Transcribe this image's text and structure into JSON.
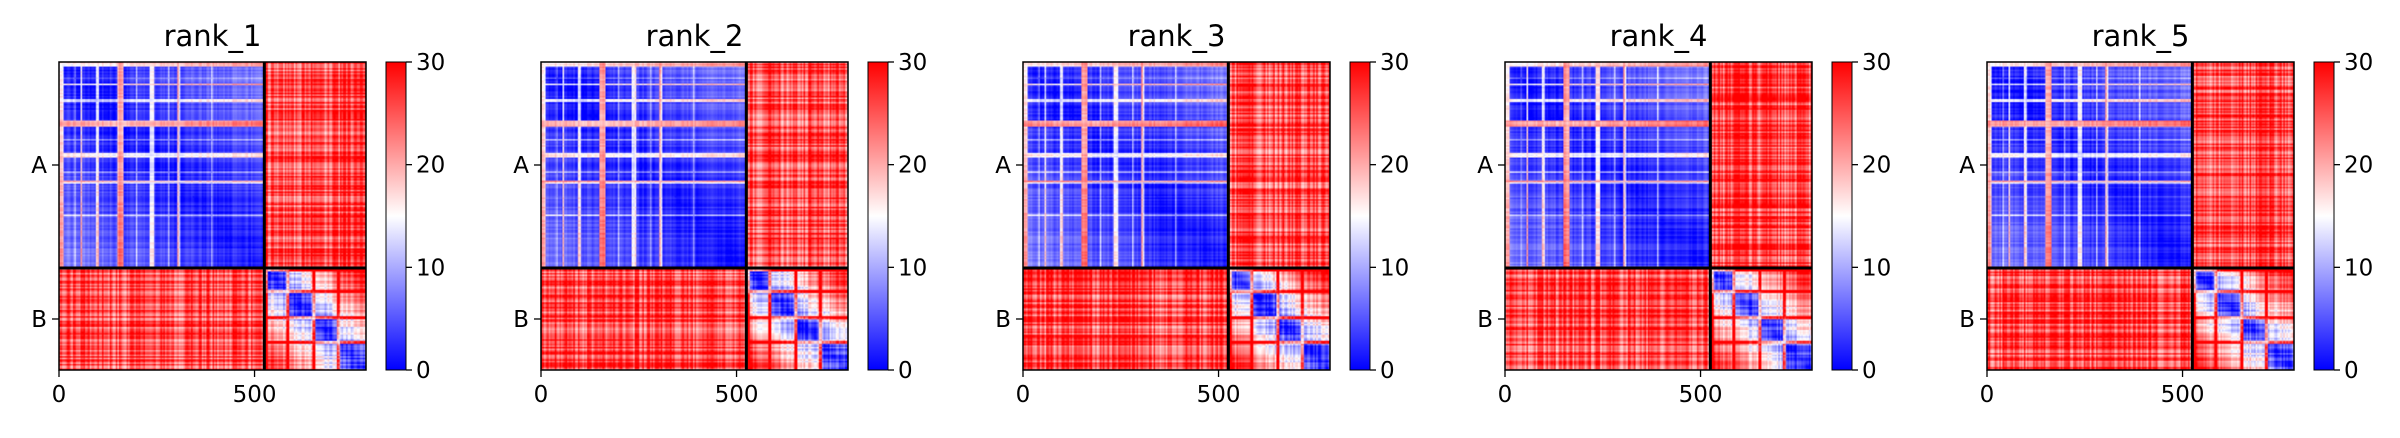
{
  "chart_data": {
    "type": "heatmap",
    "colormap": {
      "name": "bwr",
      "low_color": "#0000ff",
      "mid_color": "#ffffff",
      "high_color": "#ff0000",
      "vmin": 0,
      "vmax": 30
    },
    "residue_count": 785,
    "chains": [
      {
        "label": "A",
        "start": 0,
        "end": 525
      },
      {
        "label": "B",
        "start": 525,
        "end": 785
      }
    ],
    "xlim": [
      0,
      785
    ],
    "xticks": [
      0,
      500
    ],
    "colorbar_ticks": [
      0,
      10,
      20,
      30
    ],
    "panels": [
      {
        "title": "rank_1"
      },
      {
        "title": "rank_2"
      },
      {
        "title": "rank_3"
      },
      {
        "title": "rank_4"
      },
      {
        "title": "rank_5"
      }
    ]
  }
}
